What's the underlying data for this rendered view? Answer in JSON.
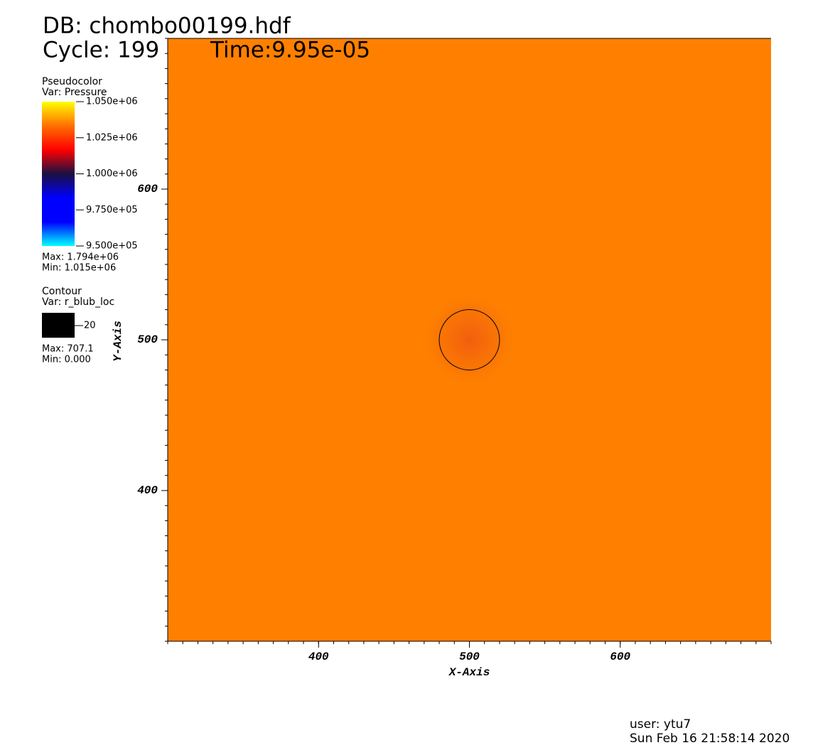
{
  "header": {
    "db": "DB: chombo00199.hdf",
    "cycle": "Cycle: 199",
    "time": "Time:9.95e-05"
  },
  "chart_data": {
    "type": "pseudocolor",
    "xlabel": "X-Axis",
    "ylabel": "Y-Axis",
    "xlim": [
      300,
      700
    ],
    "ylim": [
      300,
      700
    ],
    "xticks": [
      400,
      500,
      600
    ],
    "yticks": [
      400,
      500,
      600
    ],
    "minor_tick_step": 10,
    "field_color": "#ff8000",
    "pseudocolor": {
      "title": "Pseudocolor",
      "var": "Var: Pressure",
      "range": [
        950000,
        1050000
      ],
      "ticks": [
        {
          "value": 1050000,
          "label": "1.050e+06"
        },
        {
          "value": 1025000,
          "label": "1.025e+06"
        },
        {
          "value": 1000000,
          "label": "1.000e+06"
        },
        {
          "value": 975000,
          "label": "9.750e+05"
        },
        {
          "value": 950000,
          "label": "9.500e+05"
        }
      ],
      "colormap": [
        "#00ffff",
        "#0000ff",
        "#0000ff",
        "#1a1040",
        "#ff0000",
        "#ff7000",
        "#ffff00"
      ],
      "max": "Max:  1.794e+06",
      "min": "Min:  1.015e+06"
    },
    "contour": {
      "title": "Contour",
      "var": "Var: r_blub_loc",
      "levels": [
        20
      ],
      "color": "#000000",
      "center": [
        500,
        500
      ],
      "max": "Max: 707.1",
      "min": "Min: 0.000"
    }
  },
  "footer": {
    "user": "user: ytu7",
    "date": "Sun Feb 16 21:58:14 2020"
  }
}
